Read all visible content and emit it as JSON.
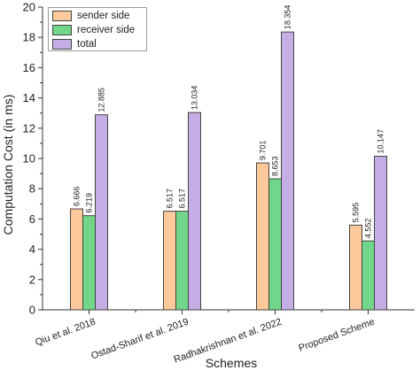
{
  "chart_data": {
    "type": "bar",
    "categories": [
      "Qiu et al. 2018",
      "Ostad-Sharif et al. 2019",
      "Radhakrishnan et al. 2022",
      "Proposed Scheme"
    ],
    "series": [
      {
        "name": "sender side",
        "color": "#fcc99b",
        "values": [
          6.666,
          6.517,
          9.701,
          5.595
        ]
      },
      {
        "name": "receiver side",
        "color": "#72d68a",
        "values": [
          6.219,
          6.517,
          8.653,
          4.552
        ]
      },
      {
        "name": "total",
        "color": "#c4aee5",
        "values": [
          12.885,
          13.034,
          18.354,
          10.147
        ]
      }
    ],
    "value_labels": [
      [
        "6.666",
        "6.517",
        "9.701",
        "5.595"
      ],
      [
        "6.219",
        "6.517",
        "8.653",
        "4.552"
      ],
      [
        "12.885",
        "13.034",
        "18.354",
        "10.147"
      ]
    ],
    "xlabel": "Schemes",
    "ylabel": "Computation Cost (in ms)",
    "ylim": [
      0,
      20
    ],
    "yticks": [
      "0",
      "2",
      "4",
      "6",
      "8",
      "10",
      "12",
      "14",
      "16",
      "18",
      "20"
    ],
    "grid": false,
    "legend_position": "top-left"
  }
}
